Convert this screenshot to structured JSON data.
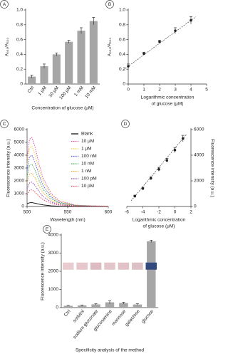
{
  "chart_data": [
    {
      "type": "bar",
      "panel": "A",
      "ylabel": "A₆₅₀/A₅₂₀",
      "xlabel": [
        "Concentration of glucose (μM)"
      ],
      "categories": [
        "Ctrl",
        "1 μM",
        "10 μM",
        "100 μM",
        "1 mM",
        "10 mM"
      ],
      "values": [
        0.1,
        0.24,
        0.4,
        0.57,
        0.72,
        0.85
      ],
      "errors": [
        0.02,
        0.03,
        0.02,
        0.02,
        0.04,
        0.05
      ],
      "color": "#a6a6a6",
      "ylim": [
        0,
        1.0
      ],
      "yticks": [
        0,
        0.2,
        0.4,
        0.6,
        0.8,
        {
          "value": 1.0,
          "label": "1.0"
        }
      ]
    },
    {
      "type": "scatter",
      "panel": "B",
      "ylabel": "A₆₅₀/A₅₂₀",
      "xlabel": [
        "Logarithmic concentration",
        "of glucose (μM)"
      ],
      "x": [
        0,
        1,
        2,
        3,
        4
      ],
      "values": [
        0.24,
        0.41,
        0.57,
        0.72,
        0.86
      ],
      "errors": [
        0.03,
        0.02,
        0.02,
        0.04,
        0.05
      ],
      "fit": true,
      "color": "#222222",
      "xlim": [
        0,
        5
      ],
      "xticks": [
        0,
        1,
        2,
        3,
        4,
        5
      ],
      "ylim": [
        0,
        1.0
      ],
      "yticks": [
        0,
        0.2,
        0.4,
        0.6,
        0.8,
        {
          "value": 1.0,
          "label": "1.0"
        }
      ]
    },
    {
      "type": "line",
      "panel": "C",
      "ylabel": "Fluorescence intensity (a.u.)",
      "xlabel": [
        "Wavelength (nm)"
      ],
      "x": [
        500,
        503,
        506,
        510,
        515,
        520,
        530,
        540,
        560,
        580,
        600
      ],
      "series": [
        {
          "name": "Blank",
          "color": "#000000",
          "dashed": false,
          "values": [
            210,
            291,
            300,
            255,
            180,
            120,
            54,
            24,
            6,
            3,
            2
          ]
        },
        {
          "name": "10 μM",
          "color": "#e0409a",
          "dashed": true,
          "values": [
            3780,
            5238,
            5400,
            4590,
            3240,
            2160,
            972,
            432,
            108,
            54,
            27
          ]
        },
        {
          "name": "1 μM",
          "color": "#e8d23a",
          "dashed": true,
          "values": [
            3290,
            4559,
            4700,
            3995,
            2820,
            1880,
            846,
            376,
            94,
            47,
            24
          ]
        },
        {
          "name": "100 nM",
          "color": "#4a4adc",
          "dashed": true,
          "values": [
            2800,
            3880,
            4000,
            3400,
            2400,
            1600,
            720,
            320,
            80,
            40,
            20
          ]
        },
        {
          "name": "10 nM",
          "color": "#3aa84a",
          "dashed": true,
          "values": [
            2310,
            3201,
            3300,
            2805,
            1980,
            1320,
            594,
            264,
            66,
            33,
            17
          ]
        },
        {
          "name": "1 nM",
          "color": "#f0a020",
          "dashed": true,
          "values": [
            1820,
            2522,
            2600,
            2210,
            1560,
            1040,
            468,
            208,
            52,
            26,
            13
          ]
        },
        {
          "name": "100 pM",
          "color": "#8a3ab0",
          "dashed": true,
          "values": [
            1330,
            1843,
            1900,
            1615,
            1140,
            760,
            342,
            152,
            38,
            19,
            10
          ]
        },
        {
          "name": "10 pM",
          "color": "#e8305a",
          "dashed": true,
          "values": [
            910,
            1261,
            1300,
            1105,
            780,
            520,
            234,
            104,
            26,
            13,
            7
          ]
        }
      ],
      "xlim": [
        500,
        600
      ],
      "xticks": [
        500,
        550,
        600
      ],
      "ylim": [
        0,
        6000
      ],
      "yticks": [
        0,
        1000,
        2000,
        3000,
        4000,
        5000,
        6000
      ]
    },
    {
      "type": "scatter",
      "panel": "D",
      "ylabel": "Fluorescence intensity (a.u.)",
      "xlabel": [
        "Logarithmic concentration",
        "of glucose (μM)"
      ],
      "x": [
        -5,
        -4,
        -3,
        -2,
        -1,
        0,
        1
      ],
      "values": [
        800,
        1400,
        2200,
        2900,
        3600,
        4400,
        5300
      ],
      "errors": [
        80,
        100,
        120,
        150,
        150,
        200,
        250
      ],
      "fit": true,
      "color": "#222222",
      "y_axis_side": "right",
      "xlim": [
        -6,
        2
      ],
      "xticks": [
        -6,
        -4,
        -2,
        0,
        2
      ],
      "ylim": [
        0,
        6000
      ],
      "yticks": [
        0,
        2000,
        4000,
        6000
      ]
    },
    {
      "type": "bar",
      "panel": "E",
      "ylabel": "Fluorescence intensity (a.u.)",
      "xlabel": [
        "Specificity analysis of the method"
      ],
      "categories": [
        "Ctrl",
        "sorbitol",
        "sodium gluconate",
        "glucosamine",
        "mannose",
        "galactose",
        "glucose"
      ],
      "values": [
        100,
        120,
        180,
        290,
        250,
        170,
        3650
      ],
      "errors": [
        20,
        25,
        30,
        80,
        50,
        40,
        60
      ],
      "color": "#a6a6a6",
      "rotate_labels": true,
      "tile_colors": [
        "#e8cccf",
        "#e6c8cc",
        "#dcbcc2",
        "#e2c6cb",
        "#e0c2c8",
        "#dcc0c6",
        "#34497e"
      ],
      "ylim": [
        0,
        4000
      ],
      "yticks": [
        0,
        1000,
        2000,
        3000,
        4000
      ]
    }
  ]
}
